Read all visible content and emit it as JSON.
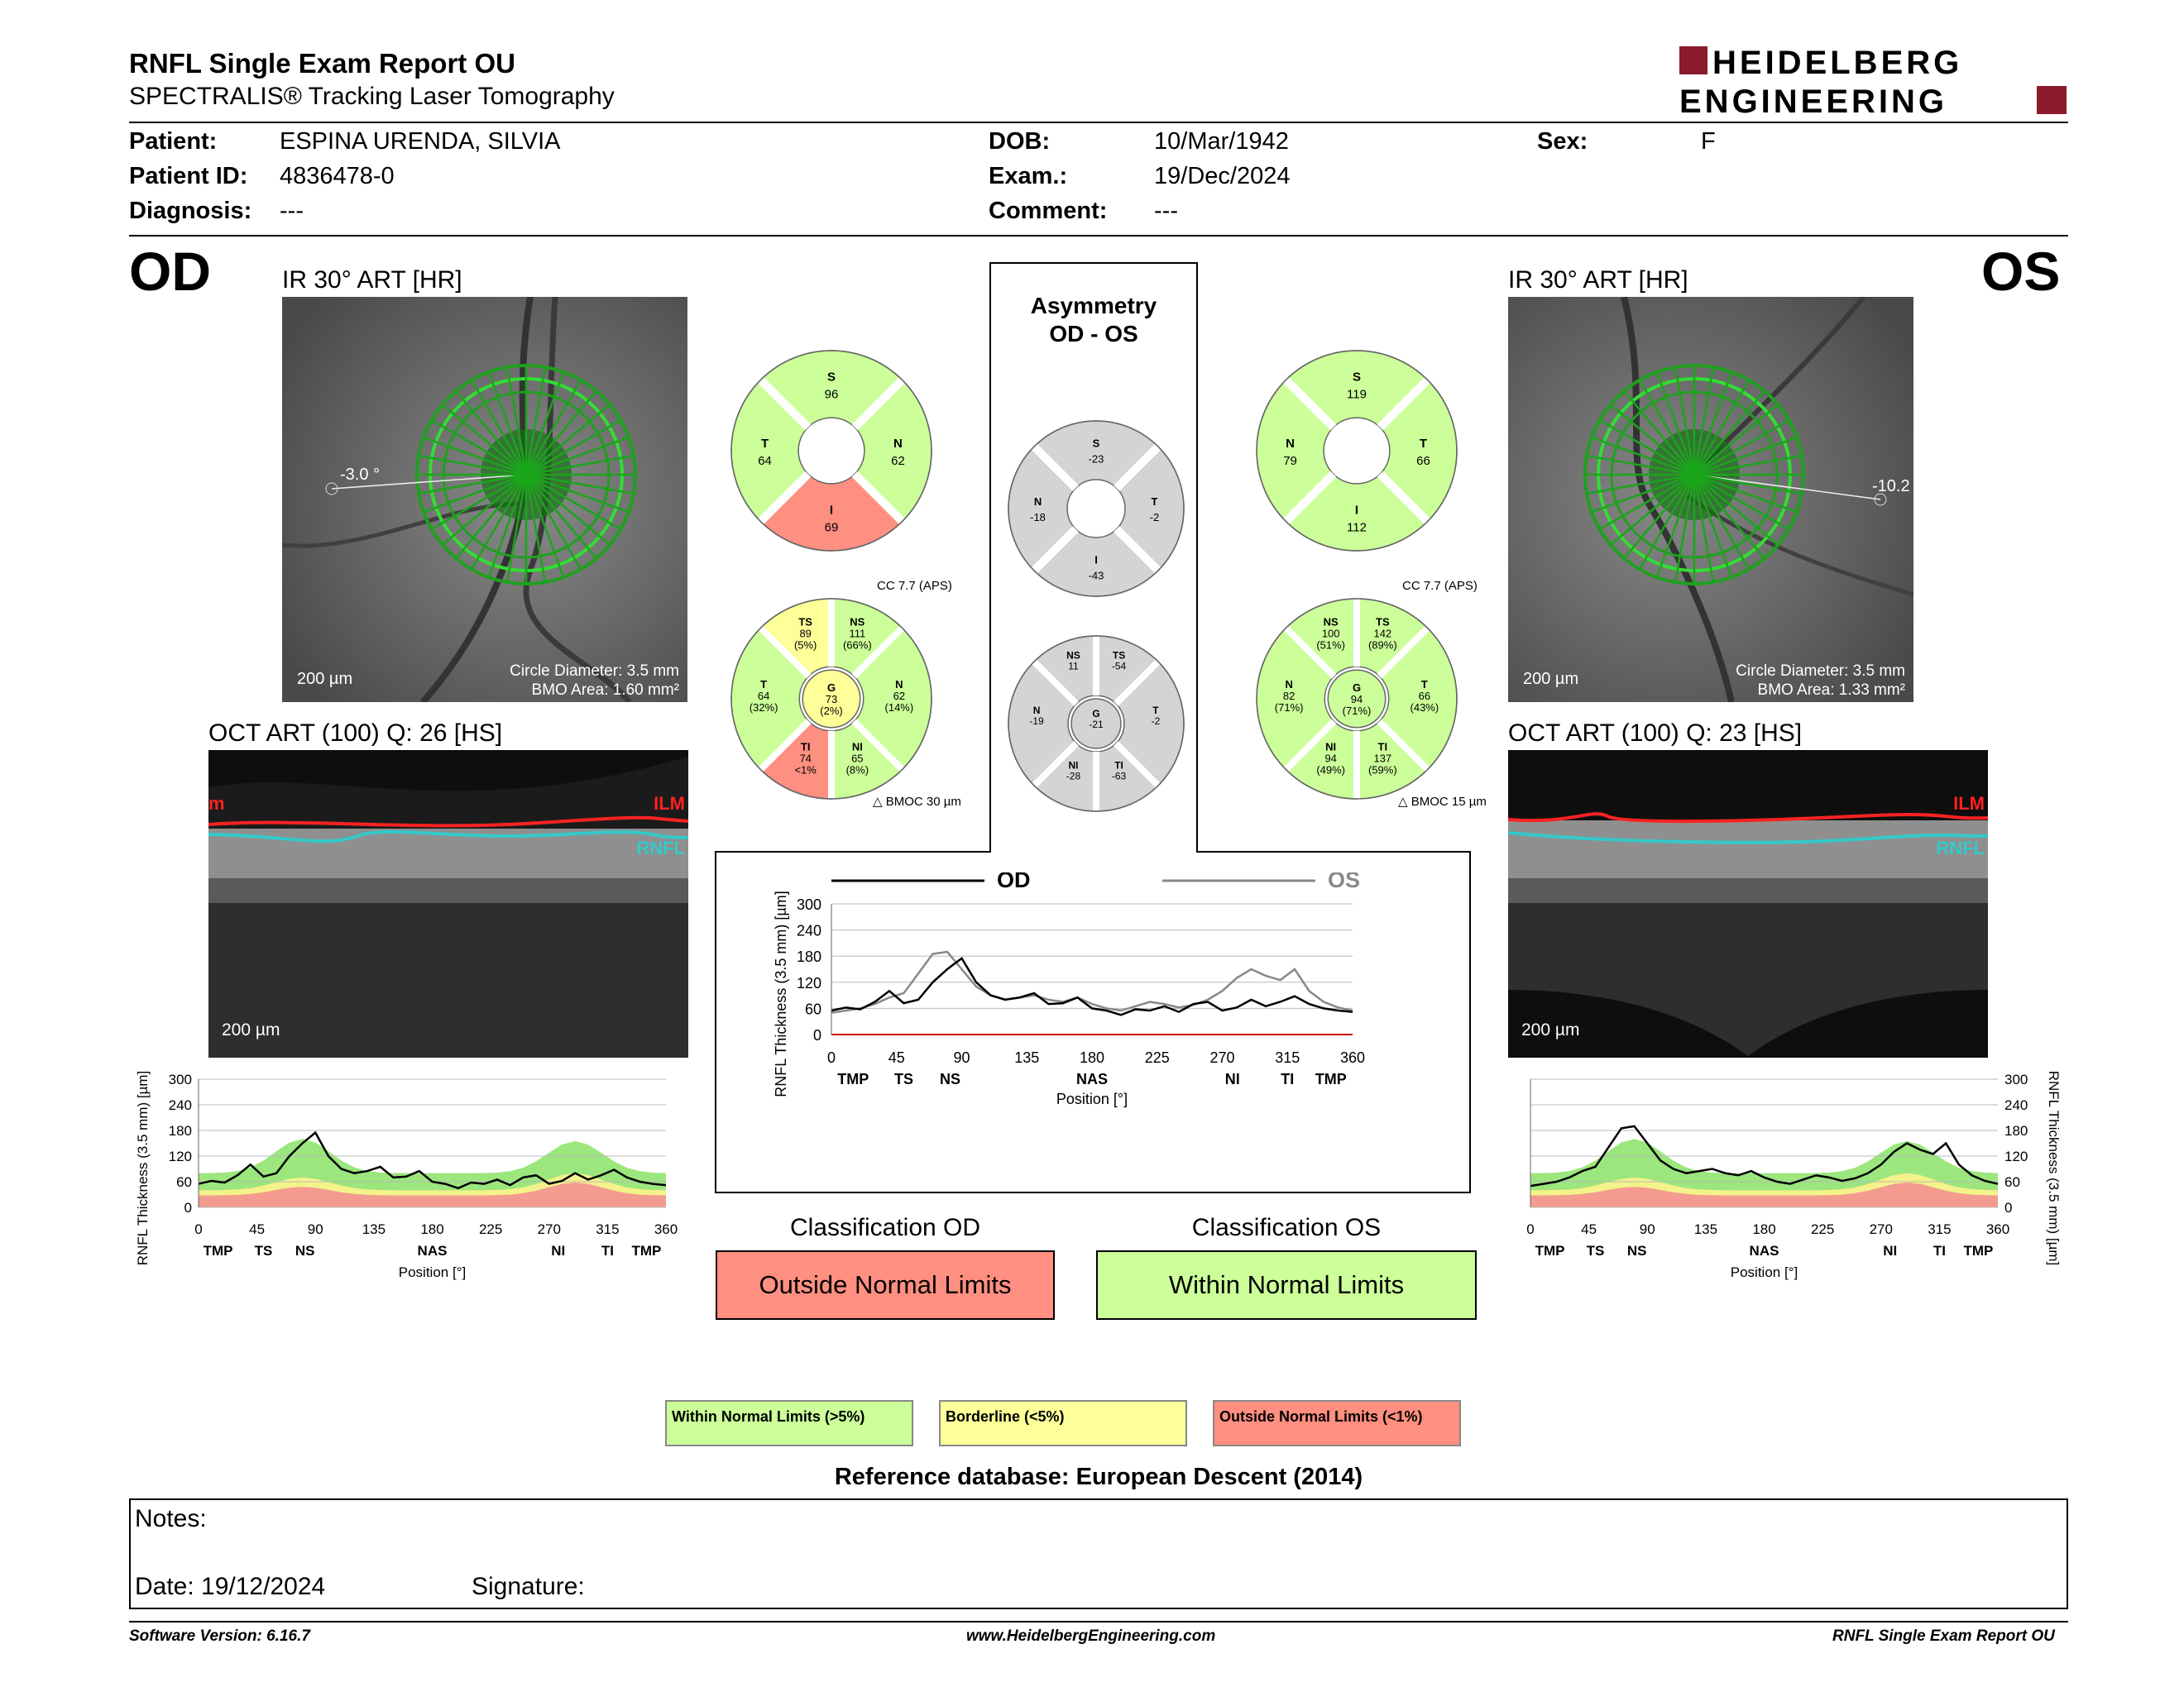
{
  "header": {
    "title": "RNFL Single Exam Report OU",
    "subtitle": "SPECTRALIS® Tracking Laser Tomography",
    "logo_line1": "HEIDELBERG",
    "logo_line2": "ENGINEERING"
  },
  "patient": {
    "patient_label": "Patient:",
    "patient_value": "ESPINA URENDA, SILVIA",
    "id_label": "Patient ID:",
    "id_value": "4836478-0",
    "diag_label": "Diagnosis:",
    "diag_value": "---",
    "dob_label": "DOB:",
    "dob_value": "10/Mar/1942",
    "exam_label": "Exam.:",
    "exam_value": "19/Dec/2024",
    "comment_label": "Comment:",
    "comment_value": "---",
    "sex_label": "Sex:",
    "sex_value": "F"
  },
  "od": {
    "eye": "OD",
    "ir_caption": "IR 30° ART [HR]",
    "angle": "-3.0 °",
    "scale": "200 µm",
    "circle": "Circle Diameter: 3.5 mm",
    "bmo": "BMO Area: 1.60 mm²",
    "oct_caption": "OCT ART (100) Q: 26 [HS]",
    "ilm": "ILM",
    "ilm_cut": "m",
    "rnfl": "RNFL",
    "oct_scale": "200 µm",
    "sectors": {
      "S": "96",
      "T": "64",
      "N": "62",
      "I": "69"
    },
    "six": {
      "TS": [
        "89",
        "(5%)"
      ],
      "NS": [
        "111",
        "(66%)"
      ],
      "T": [
        "64",
        "(32%)"
      ],
      "G": [
        "73",
        "(2%)"
      ],
      "N": [
        "62",
        "(14%)"
      ],
      "TI": [
        "74",
        "<1%"
      ],
      "NI": [
        "65",
        "(8%)"
      ]
    },
    "cc": "CC 7.7 (APS)",
    "bmoc": "BMOC 30 µm"
  },
  "os": {
    "eye": "OS",
    "ir_caption": "IR 30° ART [HR]",
    "angle": "-10.2",
    "scale": "200 µm",
    "circle": "Circle Diameter: 3.5 mm",
    "bmo": "BMO Area: 1.33 mm²",
    "oct_caption": "OCT ART (100) Q: 23 [HS]",
    "ilm": "ILM",
    "rnfl": "RNFL",
    "oct_scale": "200 µm",
    "sectors": {
      "S": "119",
      "N": "79",
      "T": "66",
      "I": "112"
    },
    "six": {
      "NS": [
        "100",
        "(51%)"
      ],
      "TS": [
        "142",
        "(89%)"
      ],
      "N": [
        "82",
        "(71%)"
      ],
      "G": [
        "94",
        "(71%)"
      ],
      "T": [
        "66",
        "(43%)"
      ],
      "NI": [
        "94",
        "(49%)"
      ],
      "TI": [
        "137",
        "(59%)"
      ]
    },
    "cc": "CC 7.7 (APS)",
    "bmoc": "BMOC 15 µm"
  },
  "asym": {
    "title1": "Asymmetry",
    "title2": "OD - OS",
    "four": {
      "S": "-23",
      "N": "-18",
      "T": "-2",
      "I": "-43"
    },
    "six": {
      "NS": "11",
      "TS": "-54",
      "N": "-19",
      "G": "-21",
      "T": "-2",
      "NI": "-28",
      "TI": "-63"
    }
  },
  "graph": {
    "legend_od": "OD",
    "legend_os": "OS",
    "ylabel": "RNFL Thickness (3.5 mm) [µm]",
    "xlabel": "Position [°]",
    "yticks": [
      "300",
      "240",
      "180",
      "120",
      "60",
      "0"
    ],
    "xticks": [
      "0",
      "45",
      "90",
      "135",
      "180",
      "225",
      "270",
      "315",
      "360"
    ],
    "sectors": [
      "TMP",
      "TS",
      "NS",
      "NAS",
      "NI",
      "TI",
      "TMP"
    ],
    "yticks_center": [
      "300",
      "240",
      "180",
      "120",
      "60",
      "0"
    ]
  },
  "classification": {
    "od_title": "Classification OD",
    "od_value": "Outside Normal Limits",
    "os_title": "Classification OS",
    "os_value": "Within Normal Limits"
  },
  "legend": {
    "wnl": "Within Normal Limits (>5%)",
    "bl": "Borderline (<5%)",
    "onl": "Outside Normal Limits (<1%)"
  },
  "reference": "Reference database: European Descent (2014)",
  "notes": {
    "notes_label": "Notes:",
    "date_label": "Date: 19/12/2024",
    "signature_label": "Signature:"
  },
  "footer": {
    "version": "Software Version: 6.16.7",
    "url": "www.HeidelbergEngineering.com",
    "report": "RNFL Single Exam Report OU"
  },
  "colors": {
    "green": "#ccff99",
    "yellow": "#ffff99",
    "red": "#ff8f80",
    "gray": "#d4d4d4",
    "band_green": "#9be67d",
    "band_yellow": "#f4f28a",
    "band_red": "#f49b8f"
  },
  "chart_data": {
    "type": "line",
    "xlabel": "Position [°]",
    "ylabel": "RNFL Thickness (3.5 mm) [µm]",
    "xlim": [
      0,
      360
    ],
    "ylim": [
      0,
      300
    ],
    "series": [
      {
        "name": "OD",
        "x": [
          0,
          10,
          20,
          30,
          40,
          50,
          60,
          70,
          80,
          90,
          100,
          110,
          120,
          130,
          140,
          150,
          160,
          170,
          180,
          190,
          200,
          210,
          220,
          230,
          240,
          250,
          260,
          270,
          280,
          290,
          300,
          310,
          320,
          330,
          340,
          350,
          360
        ],
        "values": [
          55,
          62,
          58,
          75,
          100,
          72,
          80,
          120,
          150,
          175,
          120,
          90,
          80,
          85,
          95,
          70,
          72,
          85,
          60,
          55,
          45,
          58,
          55,
          65,
          52,
          70,
          75,
          55,
          62,
          80,
          65,
          75,
          88,
          70,
          60,
          55,
          52
        ]
      },
      {
        "name": "OS",
        "x": [
          0,
          10,
          20,
          30,
          40,
          50,
          60,
          70,
          80,
          90,
          100,
          110,
          120,
          130,
          140,
          150,
          160,
          170,
          180,
          190,
          200,
          210,
          220,
          230,
          240,
          250,
          260,
          270,
          280,
          290,
          300,
          310,
          320,
          330,
          340,
          350,
          360
        ],
        "values": [
          50,
          55,
          60,
          70,
          85,
          95,
          140,
          185,
          190,
          150,
          110,
          90,
          80,
          85,
          90,
          80,
          75,
          85,
          70,
          60,
          55,
          65,
          75,
          70,
          62,
          68,
          80,
          100,
          130,
          150,
          135,
          125,
          150,
          100,
          75,
          62,
          55
        ]
      }
    ]
  }
}
